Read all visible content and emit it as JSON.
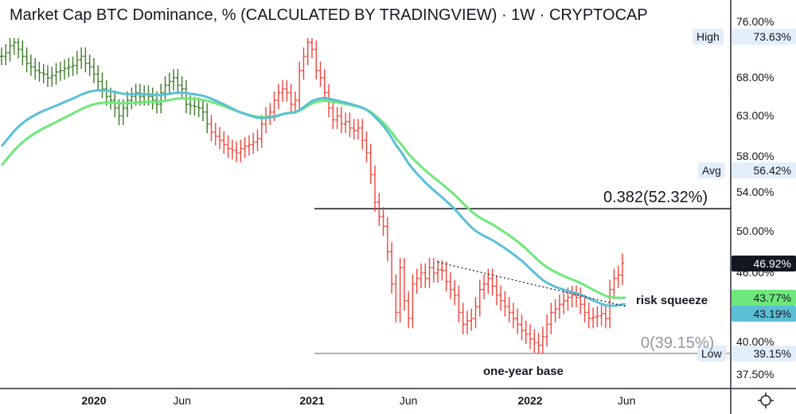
{
  "header": {
    "title": "Market Cap BTC Dominance, % (CALCULATED BY TRADINGVIEW)",
    "sep": "·",
    "interval": "1W",
    "exchange": "CRYPTOCAP"
  },
  "price_axis": {
    "ticks": [
      "76.00%",
      "68.00%",
      "63.00%",
      "58.00%",
      "54.00%",
      "50.00%",
      "46.00%",
      "40.00%",
      "37.50%"
    ],
    "tick_values": [
      76,
      68,
      63,
      58,
      54,
      50,
      46,
      40,
      37.5
    ],
    "high_label": "High",
    "high_value": "73.63%",
    "avg_label": "Avg",
    "avg_value": "56.42%",
    "low_label": "Low",
    "low_value": "39.15%",
    "last_value": "46.92%",
    "ma_slow_value": "43.77%",
    "ma_fast_value": "43.19%"
  },
  "time_axis": {
    "labels": [
      {
        "text": "2020",
        "bold": true,
        "week": 22
      },
      {
        "text": "Jun",
        "bold": false,
        "week": 43
      },
      {
        "text": "2021",
        "bold": true,
        "week": 74
      },
      {
        "text": "Jun",
        "bold": false,
        "week": 97
      },
      {
        "text": "2022",
        "bold": true,
        "week": 126
      },
      {
        "text": "Jun",
        "bold": false,
        "week": 149
      }
    ]
  },
  "annotations": {
    "fib_382": "0.382(52.32%)",
    "fib_0": "0(39.15%)",
    "risk_squeeze": "risk squeeze",
    "one_year_base": "one-year base"
  },
  "colors": {
    "up": "#3b7a26",
    "down": "#f0433a",
    "ma_fast": "#5bbfd6",
    "ma_slow": "#6ee87a",
    "label_bg": "#e3eefb",
    "last_bg": "#131722"
  },
  "chart_data": {
    "type": "ohlc",
    "title": "Market Cap BTC Dominance, % (CALCULATED BY TRADINGVIEW) · 1W · CRYPTOCAP",
    "yscale": "log",
    "ylim": [
      37,
      77.5
    ],
    "color_change_week": 50,
    "closes": [
      71,
      71.5,
      72.5,
      73,
      72,
      71,
      70,
      69.5,
      69,
      68.7,
      68.5,
      68,
      68.3,
      68.8,
      69,
      69.3,
      69.5,
      69.7,
      70.5,
      71,
      70,
      69.5,
      68.5,
      67.5,
      66.5,
      65.5,
      65,
      64,
      63,
      64,
      65,
      65.5,
      66,
      65.5,
      65.8,
      65.5,
      65,
      64.5,
      66,
      67,
      67.5,
      68,
      67,
      66.5,
      64.5,
      64.3,
      64.2,
      64,
      63.5,
      62,
      61,
      60.5,
      60,
      59.5,
      59,
      58.8,
      58.5,
      59,
      59.3,
      59.5,
      59.8,
      60.2,
      62,
      63,
      63.5,
      65,
      66,
      66.5,
      66,
      64.5,
      65,
      69,
      71,
      73,
      72,
      69,
      68,
      66,
      64,
      62.5,
      63,
      62,
      62.3,
      61.5,
      61.2,
      61.5,
      60,
      58.5,
      56,
      53,
      51.5,
      50.5,
      48,
      45,
      42.5,
      46.5,
      43.5,
      42,
      45,
      45.5,
      46,
      45.5,
      46.5,
      46,
      46.3,
      46.2,
      45.2,
      44.5,
      44,
      42.5,
      41.5,
      41.8,
      42,
      43,
      44.5,
      45,
      45.5,
      44.8,
      44,
      43.5,
      43,
      42.5,
      42,
      41.5,
      41,
      40.7,
      40.3,
      40,
      39.8,
      40.5,
      41.5,
      42.5,
      42.8,
      43.2,
      43.5,
      43.8,
      44,
      43.8,
      43.2,
      42.5,
      42,
      42.1,
      42.2,
      42.4,
      42,
      44.5,
      45.5,
      45.8,
      46.92
    ],
    "high": 73.63,
    "low": 39.15,
    "ma_fast": {
      "period": 40,
      "seed": 58.7,
      "last": 43.19
    },
    "ma_slow": {
      "period": 50,
      "seed": 56.5,
      "last": 43.77
    },
    "fib_levels": [
      {
        "ratio": 0.382,
        "value": 52.32
      },
      {
        "ratio": 0,
        "value": 39.15
      }
    ],
    "trendline": {
      "from": {
        "week": 104,
        "value": 47.0
      },
      "to": {
        "week": 149,
        "value": 43.0
      }
    }
  }
}
